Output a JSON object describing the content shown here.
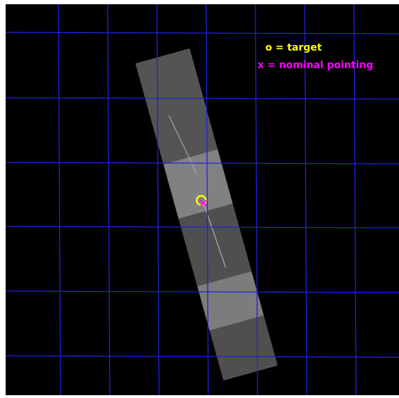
{
  "legend": {
    "target": "o = target",
    "pointing": "x = nominal pointing"
  }
}
